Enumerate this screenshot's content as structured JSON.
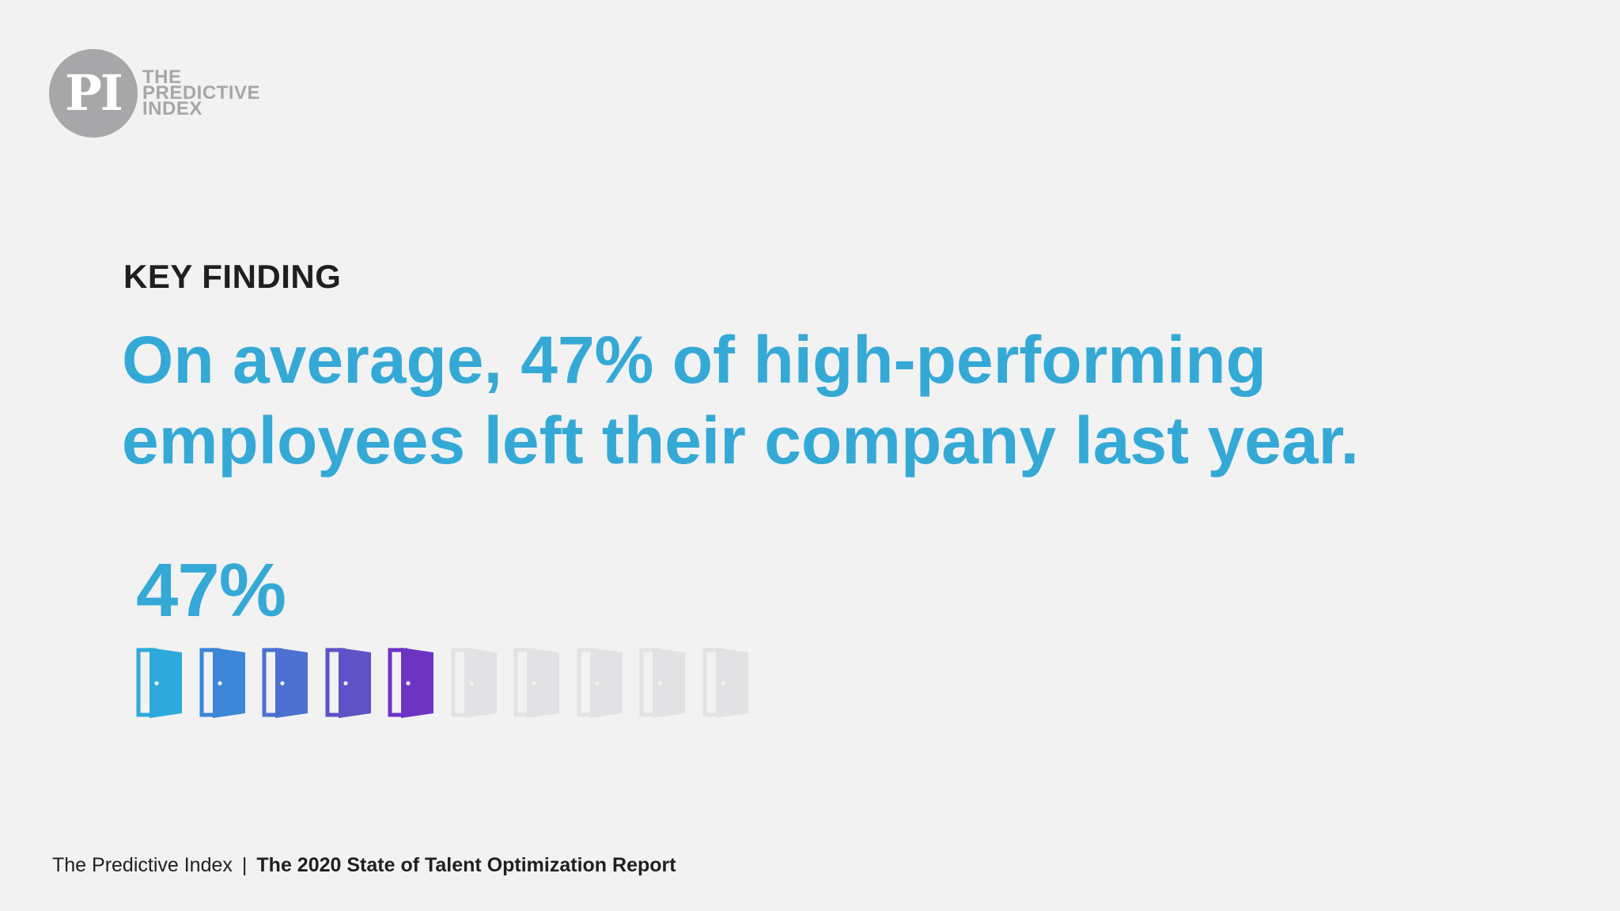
{
  "logo": {
    "mark": "PI",
    "words": [
      "THE",
      "PREDICTIVE",
      "INDEX"
    ],
    "circle_color": "#a7a7a9"
  },
  "kicker": "KEY FINDING",
  "headline": {
    "line1": "On average, 47% of high-performing",
    "line2": "employees left their company last year."
  },
  "stat": {
    "label": "47%",
    "value_percent": 47,
    "icon": "door-icon",
    "total_icons": 10,
    "filled_icons": 5,
    "filled_colors": [
      "#2fa8dc",
      "#3b86d6",
      "#4b70d0",
      "#5d52c6",
      "#6d34c4"
    ],
    "empty_color": "#e2e2e5"
  },
  "footer": {
    "publisher": "The Predictive Index",
    "separator": "|",
    "report": "The 2020 State of Talent Optimization Report"
  }
}
